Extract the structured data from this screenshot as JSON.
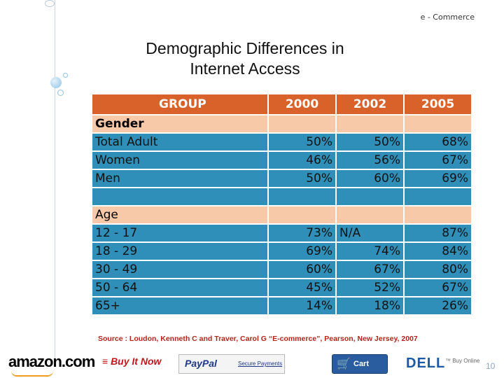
{
  "header": {
    "label": "e - Commerce"
  },
  "title": {
    "line1": "Demographic Differences in",
    "line2": "Internet Access"
  },
  "table": {
    "headers": [
      "GROUP",
      "2000",
      "2002",
      "2005"
    ],
    "sections": [
      {
        "label": "Gender",
        "rows": [
          {
            "group": "Total Adult",
            "v2000": "50%",
            "v2002": "50%",
            "v2005": "68%"
          },
          {
            "group": "Women",
            "v2000": "46%",
            "v2002": "56%",
            "v2005": "67%"
          },
          {
            "group": "Men",
            "v2000": "50%",
            "v2002": "60%",
            "v2005": "69%"
          }
        ]
      },
      {
        "label": "Age",
        "rows": [
          {
            "group": "12 - 17",
            "v2000": "73%",
            "v2002": "N/A",
            "v2005": "87%"
          },
          {
            "group": "18 - 29",
            "v2000": "69%",
            "v2002": "74%",
            "v2005": "84%"
          },
          {
            "group": "30 - 49",
            "v2000": "60%",
            "v2002": "67%",
            "v2005": "80%"
          },
          {
            "group": "50 - 64",
            "v2000": "45%",
            "v2002": "52%",
            "v2005": "67%"
          },
          {
            "group": "65+",
            "v2000": "14%",
            "v2002": "18%",
            "v2005": "26%"
          }
        ]
      }
    ]
  },
  "source": "Source : Loudon, Kenneth C and Traver, Carol G “E-commerce”,  Pearson, New Jersey, 2007",
  "logos": {
    "amazon": "amazon.com",
    "buy_it_now": "Buy It Now",
    "paypal": "PayPal",
    "secure_payments": "Secure Payments",
    "cart": "Cart",
    "dell": "DELL",
    "buy_online": "™ Buy Online"
  },
  "page_number": "10",
  "colors": {
    "header_row": "#d9622b",
    "section_row": "#f8c9a8",
    "data_row": "#2f8fb8",
    "source_text": "#b3241b"
  }
}
